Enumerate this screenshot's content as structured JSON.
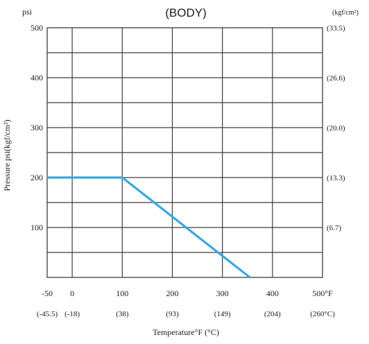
{
  "chart_data": {
    "type": "line",
    "title": "(BODY)",
    "ylabel": "Pressure  psi(kgf/cm²)",
    "xlabel": "Temperature°F (°C)",
    "y_unit_left": "psi",
    "y_unit_right": "(kgf/cm²)",
    "xlim": [
      -50,
      500
    ],
    "ylim": [
      0,
      500
    ],
    "x_ticks": [
      {
        "value": -50,
        "label": "-50",
        "sub": "(-45.5)"
      },
      {
        "value": 0,
        "label": "0",
        "sub": "(-18)"
      },
      {
        "value": 100,
        "label": "100",
        "sub": "(38)"
      },
      {
        "value": 200,
        "label": "200",
        "sub": "(93)"
      },
      {
        "value": 300,
        "label": "300",
        "sub": "(149)"
      },
      {
        "value": 400,
        "label": "400",
        "sub": "(204)"
      },
      {
        "value": 500,
        "label": "500°F",
        "sub": "(260°C)"
      }
    ],
    "y_ticks_left": [
      {
        "value": 100,
        "label": "100"
      },
      {
        "value": 200,
        "label": "200"
      },
      {
        "value": 300,
        "label": "300"
      },
      {
        "value": 400,
        "label": "400"
      },
      {
        "value": 500,
        "label": "500"
      }
    ],
    "y_ticks_right": [
      {
        "value": 100,
        "label": "(6.7)"
      },
      {
        "value": 200,
        "label": "(13.3)"
      },
      {
        "value": 300,
        "label": "(20.0)"
      },
      {
        "value": 400,
        "label": "(26.6)"
      },
      {
        "value": 500,
        "label": "(33.5)"
      }
    ],
    "grid_x": [
      0,
      100,
      200,
      300,
      400
    ],
    "grid_y": [
      50,
      100,
      150,
      200,
      250,
      300,
      350,
      400,
      450
    ],
    "grid": true,
    "series": [
      {
        "color": "#3aa8dc",
        "points": [
          [
            -50,
            200
          ],
          [
            100,
            200
          ],
          [
            355,
            0
          ]
        ]
      }
    ],
    "colors": {
      "line": "#3aa8dc",
      "grid": "#3c3c3c"
    }
  }
}
